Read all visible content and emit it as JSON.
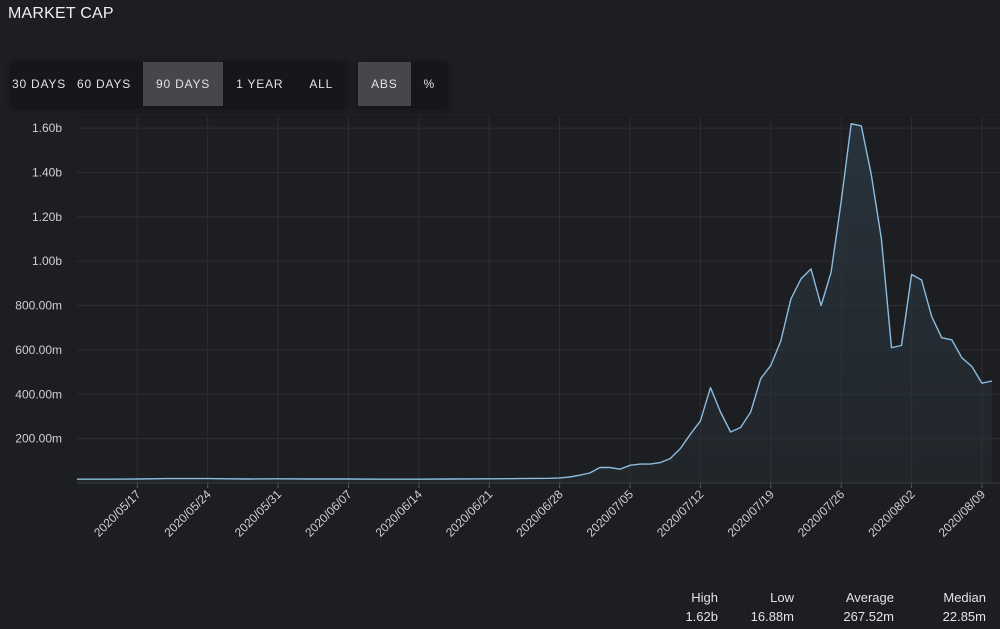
{
  "header": {
    "title": "MARKET CAP"
  },
  "toolbar": {
    "ranges": [
      {
        "label": "30 DAYS",
        "active": false
      },
      {
        "label": "60 DAYS",
        "active": false
      },
      {
        "label": "90 DAYS",
        "active": true
      },
      {
        "label": "1 YEAR",
        "active": false
      },
      {
        "label": "ALL",
        "active": false
      }
    ],
    "modes": [
      {
        "label": "ABS",
        "active": true
      },
      {
        "label": "%",
        "active": false
      }
    ]
  },
  "stats": {
    "high": {
      "label": "High",
      "value": "1.62b"
    },
    "low": {
      "label": "Low",
      "value": "16.88m"
    },
    "average": {
      "label": "Average",
      "value": "267.52m"
    },
    "median": {
      "label": "Median",
      "value": "22.85m"
    }
  },
  "colors": {
    "background": "#1d1e21",
    "line": "#8cbce0",
    "fill": "#28333c",
    "grid": "#2c2e32",
    "text": "#cfd0d2"
  },
  "chart_data": {
    "type": "area",
    "title": "",
    "xlabel": "",
    "ylabel": "",
    "ylim": [
      0,
      1650000000
    ],
    "y_ticks": [
      {
        "value": 200000000,
        "label": "200.00m"
      },
      {
        "value": 400000000,
        "label": "400.00m"
      },
      {
        "value": 600000000,
        "label": "600.00m"
      },
      {
        "value": 800000000,
        "label": "800.00m"
      },
      {
        "value": 1000000000,
        "label": "1.00b"
      },
      {
        "value": 1200000000,
        "label": "1.20b"
      },
      {
        "value": 1400000000,
        "label": "1.40b"
      },
      {
        "value": 1600000000,
        "label": "1.60b"
      }
    ],
    "x_ticks": [
      "2020/05/17",
      "2020/05/24",
      "2020/05/31",
      "2020/06/07",
      "2020/06/14",
      "2020/06/21",
      "2020/06/28",
      "2020/07/05",
      "2020/07/12",
      "2020/07/19",
      "2020/07/26",
      "2020/08/02",
      "2020/08/09"
    ],
    "x_range": [
      "2020/05/11",
      "2020/08/10"
    ],
    "series": [
      {
        "name": "",
        "points": [
          [
            "2020/05/11",
            17000000
          ],
          [
            "2020/05/14",
            17000000
          ],
          [
            "2020/05/17",
            18000000
          ],
          [
            "2020/05/20",
            20000000
          ],
          [
            "2020/05/24",
            20000000
          ],
          [
            "2020/05/28",
            18000000
          ],
          [
            "2020/05/31",
            19000000
          ],
          [
            "2020/06/03",
            18000000
          ],
          [
            "2020/06/07",
            18000000
          ],
          [
            "2020/06/10",
            17000000
          ],
          [
            "2020/06/14",
            17000000
          ],
          [
            "2020/06/17",
            18000000
          ],
          [
            "2020/06/21",
            19000000
          ],
          [
            "2020/06/24",
            20000000
          ],
          [
            "2020/06/27",
            21000000
          ],
          [
            "2020/06/28",
            23000000
          ],
          [
            "2020/06/29",
            27000000
          ],
          [
            "2020/06/30",
            35000000
          ],
          [
            "2020/07/01",
            45000000
          ],
          [
            "2020/07/02",
            70000000
          ],
          [
            "2020/07/03",
            70000000
          ],
          [
            "2020/07/04",
            62000000
          ],
          [
            "2020/07/05",
            80000000
          ],
          [
            "2020/07/06",
            85000000
          ],
          [
            "2020/07/07",
            85000000
          ],
          [
            "2020/07/08",
            92000000
          ],
          [
            "2020/07/09",
            110000000
          ],
          [
            "2020/07/10",
            155000000
          ],
          [
            "2020/07/11",
            220000000
          ],
          [
            "2020/07/12",
            280000000
          ],
          [
            "2020/07/13",
            430000000
          ],
          [
            "2020/07/14",
            320000000
          ],
          [
            "2020/07/15",
            230000000
          ],
          [
            "2020/07/16",
            250000000
          ],
          [
            "2020/07/17",
            320000000
          ],
          [
            "2020/07/18",
            470000000
          ],
          [
            "2020/07/19",
            530000000
          ],
          [
            "2020/07/20",
            640000000
          ],
          [
            "2020/07/21",
            830000000
          ],
          [
            "2020/07/22",
            920000000
          ],
          [
            "2020/07/23",
            965000000
          ],
          [
            "2020/07/24",
            800000000
          ],
          [
            "2020/07/25",
            950000000
          ],
          [
            "2020/07/26",
            1270000000
          ],
          [
            "2020/07/27",
            1620000000
          ],
          [
            "2020/07/28",
            1610000000
          ],
          [
            "2020/07/29",
            1390000000
          ],
          [
            "2020/07/30",
            1100000000
          ],
          [
            "2020/07/31",
            610000000
          ],
          [
            "2020/08/01",
            620000000
          ],
          [
            "2020/08/02",
            940000000
          ],
          [
            "2020/08/03",
            915000000
          ],
          [
            "2020/08/04",
            750000000
          ],
          [
            "2020/08/05",
            655000000
          ],
          [
            "2020/08/06",
            645000000
          ],
          [
            "2020/08/07",
            565000000
          ],
          [
            "2020/08/08",
            525000000
          ],
          [
            "2020/08/09",
            450000000
          ],
          [
            "2020/08/10",
            460000000
          ]
        ]
      }
    ],
    "grid": true
  }
}
